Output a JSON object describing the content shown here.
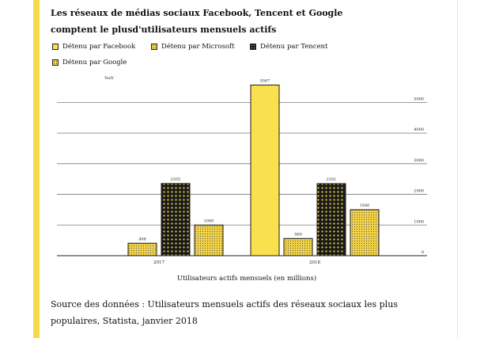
{
  "chart_data": {
    "type": "bar",
    "title": "Les réseaux de médias sociaux Facebook, Tencent et Google comptent le plusd'utilisateurs mensuels actifs",
    "xlabel": "Utilisateurs actifs mensuels (en millions)",
    "ylabel": "",
    "categories": [
      "2017",
      "2018"
    ],
    "series": [
      {
        "name": "Détenu par Facebook",
        "values": [
          null,
          5567
        ],
        "labels": [
          "",
          "5567"
        ],
        "color": "#f9e04f",
        "pattern": "solid"
      },
      {
        "name": "Détenu par Microsoft",
        "values": [
          406,
          560
        ],
        "labels": [
          "406",
          "560"
        ],
        "color": "#f2d347",
        "pattern": "dots-light"
      },
      {
        "name": "Détenu par Tencent",
        "values": [
          2355,
          2351
        ],
        "labels": [
          "2355",
          "2351"
        ],
        "color": "#1a1a1a",
        "pattern": "dots-dark"
      },
      {
        "name": "Détenu par Google",
        "values": [
          1000,
          1500
        ],
        "labels": [
          "1000",
          "1500"
        ],
        "color": "#f2d347",
        "pattern": "dots-light"
      }
    ],
    "missing_value_label": "NaN",
    "ylim": [
      0,
      5500
    ],
    "yticks": [
      0,
      1000,
      2000,
      3000,
      4000,
      5000
    ],
    "grid": true,
    "legend_position": "top-left"
  },
  "source_text": "Source des données : Utilisateurs mensuels actifs des réseaux sociaux les plus populaires, Statista, janvier 2018",
  "colors": {
    "accent": "#f8d84a",
    "ink": "#111111",
    "grid": "#7a7a7a"
  }
}
